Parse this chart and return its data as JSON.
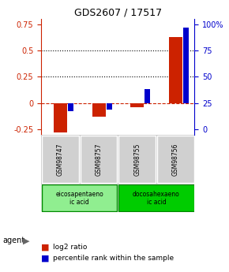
{
  "title": "GDS2607 / 17517",
  "samples": [
    "GSM98747",
    "GSM98757",
    "GSM98755",
    "GSM98756"
  ],
  "log2_ratio": [
    -0.28,
    -0.13,
    -0.04,
    0.63
  ],
  "percentile_rank": [
    0.17,
    0.19,
    0.38,
    0.97
  ],
  "agents": [
    {
      "label": "eicosapentaeno\nic acid",
      "samples": [
        0,
        1
      ],
      "color": "#90ee90"
    },
    {
      "label": "docosahexaeno\nic acid",
      "samples": [
        2,
        3
      ],
      "color": "#00cc00"
    }
  ],
  "ylim": [
    -0.3,
    0.8
  ],
  "yticks_left": [
    -0.25,
    0,
    0.25,
    0.5,
    0.75
  ],
  "yticks_right": [
    0,
    25,
    50,
    75,
    100
  ],
  "bar_color_red": "#cc2200",
  "bar_color_blue": "#0000cc",
  "bg_color": "#ffffff",
  "dotted_lines": [
    0.25,
    0.5
  ],
  "zero_line_color": "#cc2200"
}
